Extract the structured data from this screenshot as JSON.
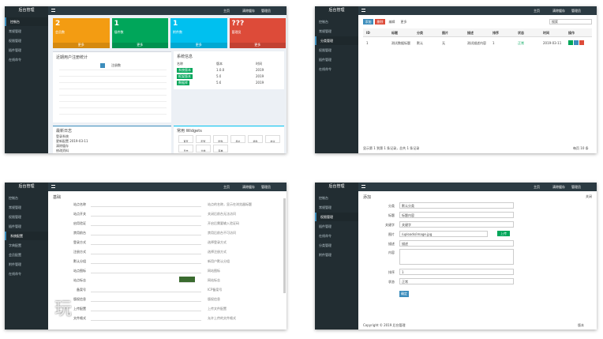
{
  "panels": [
    {
      "kind": "dashboard",
      "logo": "后台管理",
      "topbar": [
        "主页",
        "清除缓存",
        "管理员"
      ],
      "menu": [
        "控制台",
        "常规管理",
        "权限管理",
        "插件管理",
        "在线命令"
      ],
      "stats": [
        {
          "value": "2",
          "label": "会员数"
        },
        {
          "value": "1",
          "label": "插件数"
        },
        {
          "value": "1",
          "label": "附件数"
        },
        {
          "value": "???",
          "label": "管理员"
        }
      ],
      "more": "更多",
      "chart_title": "近期用户注册统计",
      "chart_legend": "注册数",
      "info_title": "系统信息",
      "info_rows": [
        [
          "名称",
          "版本",
          "时间"
        ],
        [
          "系统版本",
          "1.0.0",
          "2019"
        ],
        [
          "框架版本",
          "5.0",
          "2019"
        ],
        [
          "数据库",
          "5.6",
          "2019"
        ]
      ],
      "log_title": "最新日志",
      "log_rows": [
        "登录系统",
        "更新配置 2019-03-11",
        "清除缓存",
        "修改资料"
      ],
      "widgets_title": "常用 Widgets",
      "widgets": [
        "首页",
        "配置",
        "附件",
        "用户",
        "插件",
        "命令",
        "日志",
        "分类",
        "菜单"
      ]
    },
    {
      "kind": "table",
      "logo": "后台管理",
      "topbar": [
        "主页",
        "清除缓存",
        "管理员"
      ],
      "menu": [
        "控制台",
        "常规管理",
        "分类管理",
        "权限管理",
        "插件管理",
        "在线命令"
      ],
      "tools": [
        "添加",
        "删除",
        "编辑",
        "更多"
      ],
      "search": "搜索",
      "columns": [
        "ID",
        "标题",
        "分类",
        "图片",
        "描述",
        "排序",
        "状态",
        "时间",
        "操作"
      ],
      "row": [
        "1",
        "测试数据标题",
        "默认",
        "无",
        "测试描述内容",
        "1",
        "正常",
        "2019-03-11"
      ],
      "footer": "显示第 1 到第 1 条记录，总共 1 条记录",
      "pager": "每页 10 条"
    },
    {
      "kind": "form",
      "logo": "后台管理",
      "topbar": [
        "主页",
        "清除缓存",
        "管理员"
      ],
      "menu": [
        "控制台",
        "常规管理",
        "权限管理",
        "插件管理",
        "系统配置",
        "字典配置",
        "会员配置",
        "附件管理",
        "在线命令"
      ],
      "tab": "基础",
      "fields": [
        "站点名称",
        "站点开关",
        "启用验证",
        "禁用前台",
        "登录方式",
        "注册方式",
        "默认分组",
        "站点图标",
        "站点标志",
        "备案号",
        "版权信息",
        "上传配置",
        "文件格式"
      ],
      "hints": [
        "站点的名称，显示在浏览器标题",
        "关闭后前台无法访问",
        "开启后需要输入验证码",
        "禁用后前台不可访问",
        "选择登录方式",
        "选择注册方式",
        "新用户默认分组",
        "网站图标",
        "网站标志",
        "ICP备案号",
        "版权信息",
        "上传文件配置",
        "允许上传的文件格式"
      ],
      "watermark": "玩"
    },
    {
      "kind": "form2",
      "logo": "后台管理",
      "topbar": [
        "主页",
        "清除缓存",
        "管理员"
      ],
      "menu": [
        "控制台",
        "常规管理",
        "权限管理",
        "插件管理",
        "在线命令",
        "分类管理",
        "附件管理"
      ],
      "title": "添加",
      "close": "关闭",
      "fields": [
        "分类",
        "标题",
        "关键字",
        "图片",
        "描述",
        "内容",
        "排序",
        "状态"
      ],
      "values": [
        "默认分类",
        "标题内容",
        "关键字",
        "/uploads/image.jpg",
        "描述",
        "",
        "1",
        "正常"
      ],
      "upload": "上传",
      "submit": "确定",
      "footer": "Copyright © 2019 后台管理",
      "footer_right": "版本"
    }
  ]
}
